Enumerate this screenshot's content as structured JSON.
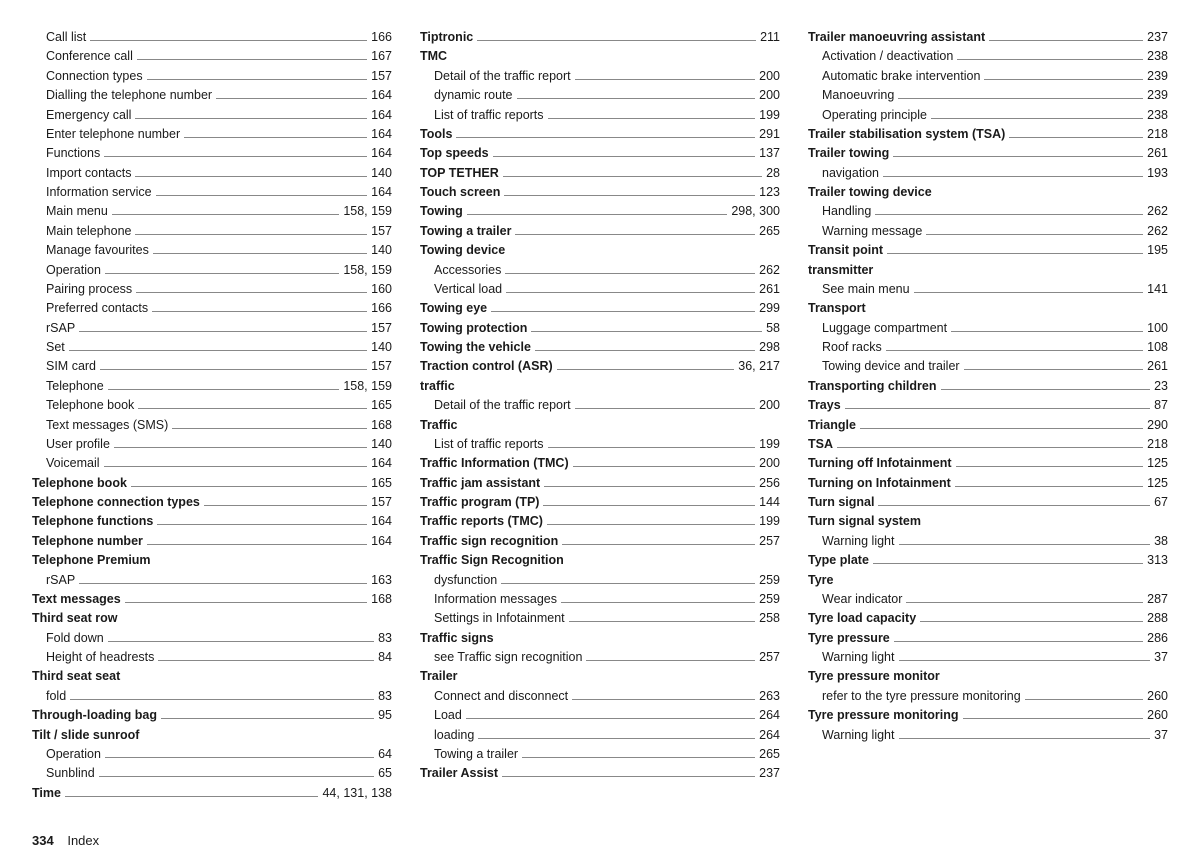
{
  "footer": {
    "pageNumber": "334",
    "sectionLabel": "Index"
  },
  "columns": [
    [
      {
        "label": "Call list",
        "page": "166",
        "sub": true
      },
      {
        "label": "Conference call",
        "page": "167",
        "sub": true
      },
      {
        "label": "Connection types",
        "page": "157",
        "sub": true
      },
      {
        "label": "Dialling the telephone number",
        "page": "164",
        "sub": true
      },
      {
        "label": "Emergency call",
        "page": "164",
        "sub": true
      },
      {
        "label": "Enter telephone number",
        "page": "164",
        "sub": true
      },
      {
        "label": "Functions",
        "page": "164",
        "sub": true
      },
      {
        "label": "Import contacts",
        "page": "140",
        "sub": true
      },
      {
        "label": "Information service",
        "page": "164",
        "sub": true
      },
      {
        "label": "Main menu",
        "page": "158, 159",
        "sub": true
      },
      {
        "label": "Main telephone",
        "page": "157",
        "sub": true
      },
      {
        "label": "Manage favourites",
        "page": "140",
        "sub": true
      },
      {
        "label": "Operation",
        "page": "158, 159",
        "sub": true
      },
      {
        "label": "Pairing process",
        "page": "160",
        "sub": true
      },
      {
        "label": "Preferred contacts",
        "page": "166",
        "sub": true
      },
      {
        "label": "rSAP",
        "page": "157",
        "sub": true
      },
      {
        "label": "Set",
        "page": "140",
        "sub": true
      },
      {
        "label": "SIM card",
        "page": "157",
        "sub": true
      },
      {
        "label": "Telephone",
        "page": "158, 159",
        "sub": true
      },
      {
        "label": "Telephone book",
        "page": "165",
        "sub": true
      },
      {
        "label": "Text messages (SMS)",
        "page": "168",
        "sub": true
      },
      {
        "label": "User profile",
        "page": "140",
        "sub": true
      },
      {
        "label": "Voicemail",
        "page": "164",
        "sub": true
      },
      {
        "label": "Telephone book",
        "page": "165",
        "bold": true
      },
      {
        "label": "Telephone connection types",
        "page": "157",
        "bold": true
      },
      {
        "label": "Telephone functions",
        "page": "164",
        "bold": true
      },
      {
        "label": "Telephone number",
        "page": "164",
        "bold": true
      },
      {
        "label": "Telephone Premium",
        "heading": true
      },
      {
        "label": "rSAP",
        "page": "163",
        "sub": true
      },
      {
        "label": "Text messages",
        "page": "168",
        "bold": true
      },
      {
        "label": "Third seat row",
        "heading": true
      },
      {
        "label": "Fold down",
        "page": "83",
        "sub": true
      },
      {
        "label": "Height of headrests",
        "page": "84",
        "sub": true
      },
      {
        "label": "Third seat seat",
        "heading": true
      },
      {
        "label": "fold",
        "page": "83",
        "sub": true
      },
      {
        "label": "Through-loading bag",
        "page": "95",
        "bold": true
      },
      {
        "label": "Tilt / slide sunroof",
        "heading": true
      },
      {
        "label": "Operation",
        "page": "64",
        "sub": true
      },
      {
        "label": "Sunblind",
        "page": "65",
        "sub": true
      },
      {
        "label": "Time",
        "page": "44, 131, 138",
        "bold": true
      }
    ],
    [
      {
        "label": "Tiptronic",
        "page": "211",
        "bold": true
      },
      {
        "label": "TMC",
        "heading": true
      },
      {
        "label": "Detail of the traffic report",
        "page": "200",
        "sub": true
      },
      {
        "label": "dynamic route",
        "page": "200",
        "sub": true
      },
      {
        "label": "List of traffic reports",
        "page": "199",
        "sub": true
      },
      {
        "label": "Tools",
        "page": "291",
        "bold": true
      },
      {
        "label": "Top speeds",
        "page": "137",
        "bold": true
      },
      {
        "label": "TOP TETHER",
        "page": "28",
        "bold": true
      },
      {
        "label": "Touch screen",
        "page": "123",
        "bold": true
      },
      {
        "label": "Towing",
        "page": "298, 300",
        "bold": true
      },
      {
        "label": "Towing a trailer",
        "page": "265",
        "bold": true
      },
      {
        "label": "Towing device",
        "heading": true
      },
      {
        "label": "Accessories",
        "page": "262",
        "sub": true
      },
      {
        "label": "Vertical load",
        "page": "261",
        "sub": true
      },
      {
        "label": "Towing eye",
        "page": "299",
        "bold": true
      },
      {
        "label": "Towing protection",
        "page": "58",
        "bold": true
      },
      {
        "label": "Towing the vehicle",
        "page": "298",
        "bold": true
      },
      {
        "label": "Traction control (ASR)",
        "page": "36, 217",
        "bold": true
      },
      {
        "label": "traffic",
        "heading": true
      },
      {
        "label": "Detail of the traffic report",
        "page": "200",
        "sub": true
      },
      {
        "label": "Traffic",
        "heading": true
      },
      {
        "label": "List of traffic reports",
        "page": "199",
        "sub": true
      },
      {
        "label": "Traffic Information (TMC)",
        "page": "200",
        "bold": true
      },
      {
        "label": "Traffic jam assistant",
        "page": "256",
        "bold": true
      },
      {
        "label": "Traffic program (TP)",
        "page": "144",
        "bold": true
      },
      {
        "label": "Traffic reports (TMC)",
        "page": "199",
        "bold": true
      },
      {
        "label": "Traffic sign recognition",
        "page": "257",
        "bold": true
      },
      {
        "label": "Traffic Sign Recognition",
        "heading": true
      },
      {
        "label": "dysfunction",
        "page": "259",
        "sub": true
      },
      {
        "label": "Information messages",
        "page": "259",
        "sub": true
      },
      {
        "label": "Settings in Infotainment",
        "page": "258",
        "sub": true
      },
      {
        "label": "Traffic signs",
        "heading": true
      },
      {
        "label": "see Traffic sign recognition",
        "page": "257",
        "sub": true
      },
      {
        "label": "Trailer",
        "heading": true
      },
      {
        "label": "Connect and disconnect",
        "page": "263",
        "sub": true
      },
      {
        "label": "Load",
        "page": "264",
        "sub": true
      },
      {
        "label": "loading",
        "page": "264",
        "sub": true
      },
      {
        "label": "Towing a trailer",
        "page": "265",
        "sub": true
      },
      {
        "label": "Trailer Assist",
        "page": "237",
        "bold": true
      }
    ],
    [
      {
        "label": "Trailer manoeuvring assistant",
        "page": "237",
        "bold": true
      },
      {
        "label": "Activation / deactivation",
        "page": "238",
        "sub": true
      },
      {
        "label": "Automatic brake intervention",
        "page": "239",
        "sub": true
      },
      {
        "label": "Manoeuvring",
        "page": "239",
        "sub": true
      },
      {
        "label": "Operating principle",
        "page": "238",
        "sub": true
      },
      {
        "label": "Trailer stabilisation system (TSA)",
        "page": "218",
        "bold": true
      },
      {
        "label": "Trailer towing",
        "page": "261",
        "bold": true
      },
      {
        "label": "navigation",
        "page": "193",
        "sub": true
      },
      {
        "label": "Trailer towing device",
        "heading": true
      },
      {
        "label": "Handling",
        "page": "262",
        "sub": true
      },
      {
        "label": "Warning message",
        "page": "262",
        "sub": true
      },
      {
        "label": "Transit point",
        "page": "195",
        "bold": true
      },
      {
        "label": "transmitter",
        "heading": true
      },
      {
        "label": "See main menu",
        "page": "141",
        "sub": true
      },
      {
        "label": "Transport",
        "heading": true
      },
      {
        "label": "Luggage compartment",
        "page": "100",
        "sub": true
      },
      {
        "label": "Roof racks",
        "page": "108",
        "sub": true
      },
      {
        "label": "Towing device and trailer",
        "page": "261",
        "sub": true
      },
      {
        "label": "Transporting children",
        "page": "23",
        "bold": true
      },
      {
        "label": "Trays",
        "page": "87",
        "bold": true
      },
      {
        "label": "Triangle",
        "page": "290",
        "bold": true
      },
      {
        "label": "TSA",
        "page": "218",
        "bold": true
      },
      {
        "label": "Turning off Infotainment",
        "page": "125",
        "bold": true
      },
      {
        "label": "Turning on Infotainment",
        "page": "125",
        "bold": true
      },
      {
        "label": "Turn signal",
        "page": "67",
        "bold": true
      },
      {
        "label": "Turn signal system",
        "heading": true
      },
      {
        "label": "Warning light",
        "page": "38",
        "sub": true
      },
      {
        "label": "Type plate",
        "page": "313",
        "bold": true
      },
      {
        "label": "Tyre",
        "heading": true
      },
      {
        "label": "Wear indicator",
        "page": "287",
        "sub": true
      },
      {
        "label": "Tyre load capacity",
        "page": "288",
        "bold": true
      },
      {
        "label": "Tyre pressure",
        "page": "286",
        "bold": true
      },
      {
        "label": "Warning light",
        "page": "37",
        "sub": true
      },
      {
        "label": "Tyre pressure monitor",
        "heading": true
      },
      {
        "label": "refer to the tyre pressure monitoring",
        "page": "260",
        "sub": true
      },
      {
        "label": "Tyre pressure monitoring",
        "page": "260",
        "bold": true
      },
      {
        "label": "Warning light",
        "page": "37",
        "sub": true
      }
    ]
  ]
}
